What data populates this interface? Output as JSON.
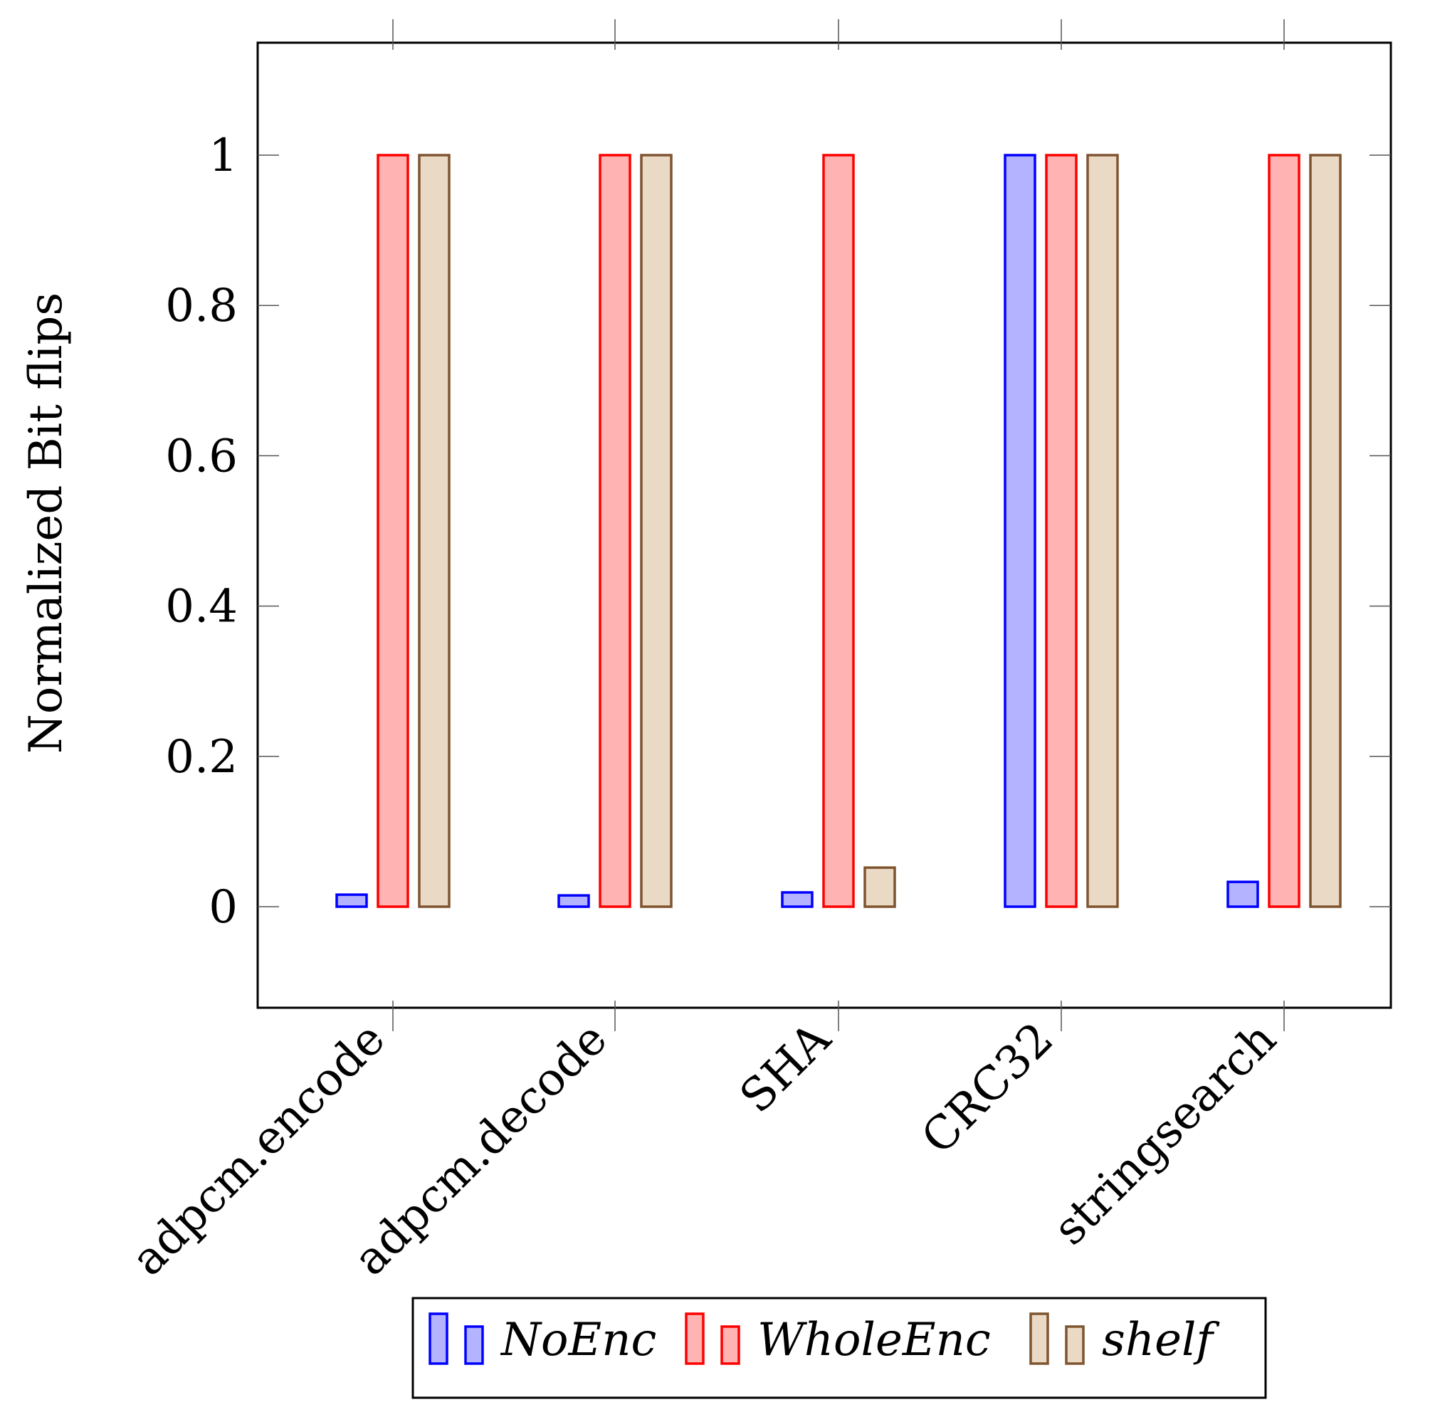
{
  "chart_data": {
    "type": "bar",
    "title": "",
    "xlabel": "",
    "ylabel": "Normalized Bit flips",
    "ylim": [
      -0.13,
      1.15
    ],
    "yticks": [
      0,
      0.2,
      0.4,
      0.6,
      0.8,
      1
    ],
    "ytick_labels": [
      "0",
      "0.2",
      "0.4",
      "0.6",
      "0.8",
      "1"
    ],
    "categories": [
      "adpcm.encode",
      "adpcm.decode",
      "SHA",
      "CRC32",
      "stringsearch"
    ],
    "series": [
      {
        "name": "NoEnc",
        "values": [
          0.016,
          0.015,
          0.019,
          1.0,
          0.033
        ],
        "stroke": "#0000ff",
        "fill": "#b3b3ff"
      },
      {
        "name": "WholeEnc",
        "values": [
          1.0,
          1.0,
          1.0,
          1.0,
          1.0
        ],
        "stroke": "#ff0000",
        "fill": "#ffb3b3"
      },
      {
        "name": "shelf",
        "values": [
          1.0,
          1.0,
          0.052,
          1.0,
          1.0
        ],
        "stroke": "#7f5430",
        "fill": "#ead9c4"
      }
    ],
    "legend": {
      "position": "bottom-center",
      "labels": [
        "NoEnc",
        "WholeEnc",
        "shelf"
      ]
    },
    "grid": false
  }
}
